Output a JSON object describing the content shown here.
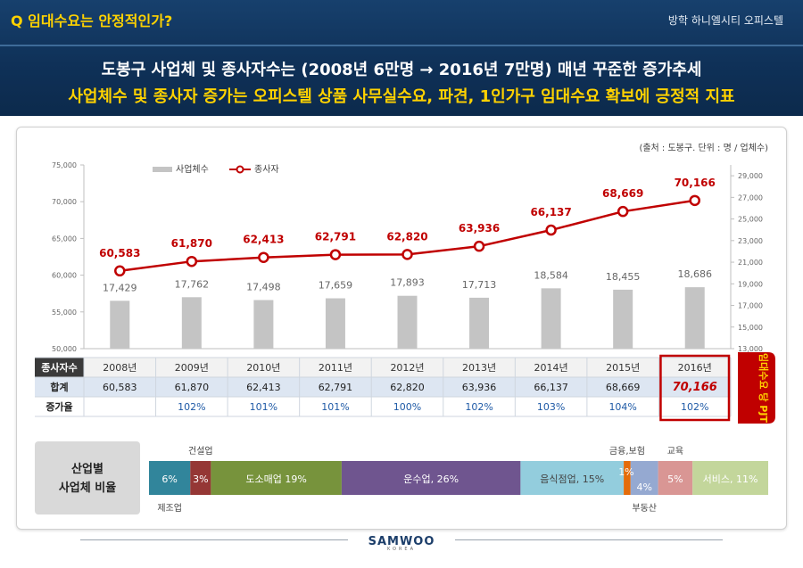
{
  "header": {
    "question": "Q 임대수요는 안정적인가?",
    "project": "방학 하니엘시티 오피스텔",
    "line1": "도봉구 사업체 및 종사자수는 (2008년 6만명 → 2016년 7만명) 매년 꾸준한 증가추세",
    "line2": "사업체수 및 종사자 증가는 오피스텔 상품 사무실수요, 파견, 1인가구 임대수요 확보에 긍정적 지표"
  },
  "colors": {
    "bar": "#c4c4c4",
    "line": "#c00000",
    "label": "#c00000",
    "header_bg": "#0f3158",
    "accent": "#ffd200",
    "table_header": "#3a3a3a",
    "table_row": "#dde6f2",
    "rate": "#1f5aa6",
    "highlight": "#c00000"
  },
  "chart_data": {
    "type": "bar",
    "source": "(출처 : 도봉구. 단위 : 명 / 업체수)",
    "legend": [
      "사업체수",
      "종사자"
    ],
    "categories": [
      "2008년",
      "2009년",
      "2010년",
      "2011년",
      "2012년",
      "2013년",
      "2014년",
      "2015년",
      "2016년"
    ],
    "series": [
      {
        "name": "사업체수",
        "type": "bar",
        "axis": "right",
        "values": [
          17429,
          17762,
          17498,
          17659,
          17893,
          17713,
          18584,
          18455,
          18686
        ],
        "labels": [
          "17,429",
          "17,762",
          "17,498",
          "17,659",
          "17,893",
          "17,713",
          "18,584",
          "18,455",
          "18,686"
        ]
      },
      {
        "name": "종사자",
        "type": "line",
        "axis": "left",
        "values": [
          60583,
          61870,
          62413,
          62791,
          62820,
          63936,
          66137,
          68669,
          70166
        ],
        "labels": [
          "60,583",
          "61,870",
          "62,413",
          "62,791",
          "62,820",
          "63,936",
          "66,137",
          "68,669",
          "70,166"
        ]
      }
    ],
    "y_left": {
      "range": [
        50000,
        75000
      ],
      "ticks": [
        "50,000",
        "55,000",
        "60,000",
        "65,000",
        "70,000",
        "75,000"
      ]
    },
    "y_right": {
      "range": [
        13000,
        30000
      ],
      "ticks": [
        "13,000",
        "15,000",
        "17,000",
        "19,000",
        "21,000",
        "23,000",
        "25,000",
        "27,000",
        "29,000"
      ]
    },
    "table": {
      "header_label": "종사자수",
      "total_label": "합계",
      "rate_label": "증가율",
      "totals": [
        "60,583",
        "61,870",
        "62,413",
        "62,791",
        "62,820",
        "63,936",
        "66,137",
        "68,669",
        "70,166"
      ],
      "rates": [
        "",
        "102%",
        "101%",
        "101%",
        "100%",
        "102%",
        "103%",
        "104%",
        "102%"
      ]
    },
    "highlight_label": "임대수요 당 PJT"
  },
  "industry": {
    "title_line1": "산업별",
    "title_line2": "사업체 비율",
    "segments": [
      {
        "label": "6%",
        "value": 6,
        "color": "#31859b",
        "text_color": "#ffffff"
      },
      {
        "label": "3%",
        "value": 3,
        "color": "#953735",
        "text_color": "#ffffff"
      },
      {
        "label": "도소매업 19%",
        "value": 19,
        "color": "#77933c",
        "text_color": "#ffffff"
      },
      {
        "label": "운수업, 26%",
        "value": 26,
        "color": "#6f558f",
        "text_color": "#ffffff"
      },
      {
        "label": "음식점업, 15%",
        "value": 15,
        "color": "#93cddd",
        "text_color": "#444444"
      },
      {
        "label": "1%",
        "value": 1,
        "color": "#e46c0a",
        "text_color": "#ffffff"
      },
      {
        "label": "4%",
        "value": 4,
        "color": "#95a9d1",
        "text_color": "#ffffff"
      },
      {
        "label": "5%",
        "value": 5,
        "color": "#d99694",
        "text_color": "#ffffff"
      },
      {
        "label": "서비스, 11%",
        "value": 11,
        "color": "#c3d69b",
        "text_color": "#ffffff"
      }
    ],
    "callouts": {
      "construction": "건설업",
      "manufacturing": "제조업",
      "finance": "금융,보험",
      "realestate": "부동산",
      "education": "교육"
    }
  },
  "footer": {
    "brand": "SAMWOO",
    "sub": "KOREA"
  }
}
